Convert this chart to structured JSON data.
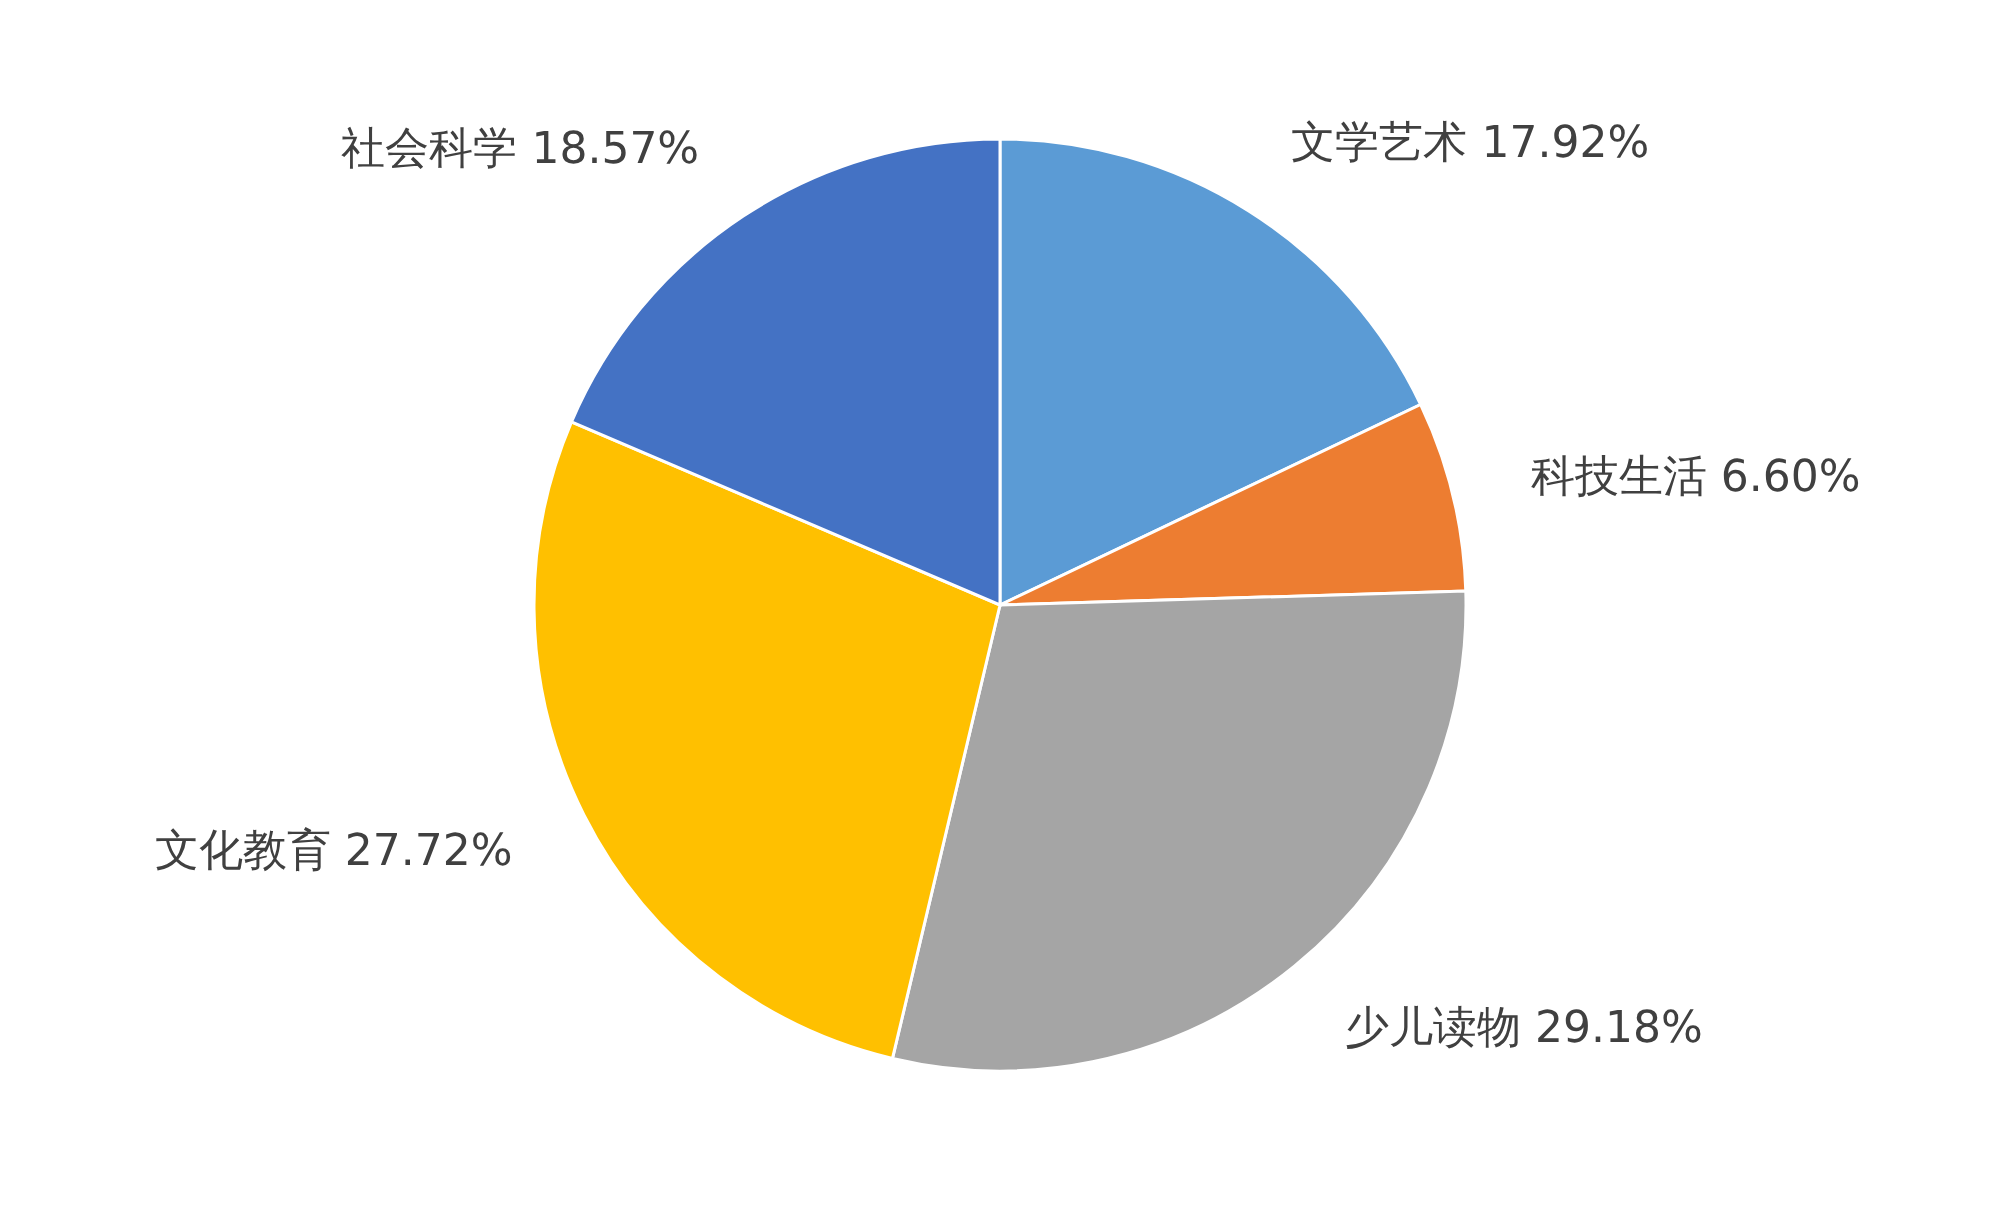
{
  "chart_data": {
    "type": "pie",
    "categories": [
      "文学艺术",
      "科技生活",
      "少儿读物",
      "文化教育",
      "社会科学"
    ],
    "values": [
      17.92,
      6.6,
      29.18,
      27.72,
      18.57
    ],
    "value_labels": [
      "17.92%",
      "6.60%",
      "29.18%",
      "27.72%",
      "18.57%"
    ],
    "colors": [
      "#5b9bd5",
      "#ed7d31",
      "#a5a5a5",
      "#ffc000",
      "#4472c4"
    ]
  }
}
